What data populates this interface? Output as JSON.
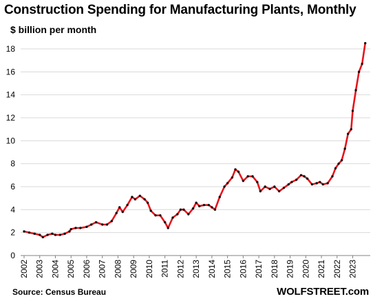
{
  "chart_data": {
    "type": "line",
    "title": "Construction Spending for Manufacturing Plants, Monthly",
    "subtitle": "$ billion per month",
    "xlabel": "",
    "ylabel": "",
    "xlim": [
      2002,
      2023.9
    ],
    "ylim": [
      0,
      19
    ],
    "yticks": [
      0,
      2,
      4,
      6,
      8,
      10,
      12,
      14,
      16,
      18
    ],
    "xticks": [
      "2002",
      "2003",
      "2004",
      "2005",
      "2006",
      "2007",
      "2008",
      "2009",
      "2010",
      "2011",
      "2012",
      "2013",
      "2014",
      "2015",
      "2016",
      "2017",
      "2018",
      "2019",
      "2020",
      "2021",
      "2022",
      "2023"
    ],
    "grid": {
      "y": true,
      "x": false
    },
    "line_color": "#e8141b",
    "marker_color": "#111111",
    "series": [
      {
        "x": [
          2002.0,
          2002.33,
          2002.67,
          2003.0,
          2003.2,
          2003.5,
          2003.8,
          2004.0,
          2004.3,
          2004.6,
          2004.9,
          2005.0,
          2005.3,
          2005.6,
          2006.0,
          2006.3,
          2006.6,
          2007.0,
          2007.3,
          2007.6,
          2007.9,
          2008.1,
          2008.3,
          2008.6,
          2008.9,
          2009.1,
          2009.4,
          2009.7,
          2009.9,
          2010.1,
          2010.4,
          2010.7,
          2011.0,
          2011.2,
          2011.5,
          2011.8,
          2012.0,
          2012.2,
          2012.5,
          2012.8,
          2013.0,
          2013.2,
          2013.5,
          2013.8,
          2014.0,
          2014.2,
          2014.5,
          2014.8,
          2015.0,
          2015.3,
          2015.5,
          2015.7,
          2016.0,
          2016.3,
          2016.6,
          2016.9,
          2017.1,
          2017.4,
          2017.7,
          2018.0,
          2018.3,
          2018.6,
          2018.9,
          2019.1,
          2019.4,
          2019.7,
          2019.9,
          2020.1,
          2020.4,
          2020.7,
          2020.9,
          2021.1,
          2021.4,
          2021.7,
          2021.9,
          2022.1,
          2022.3,
          2022.5,
          2022.7,
          2022.9,
          2023.0,
          2023.2,
          2023.4,
          2023.6,
          2023.8
        ],
        "values": [
          2.1,
          2.0,
          1.9,
          1.8,
          1.6,
          1.8,
          1.9,
          1.8,
          1.8,
          1.9,
          2.1,
          2.3,
          2.4,
          2.4,
          2.5,
          2.7,
          2.9,
          2.7,
          2.7,
          3.0,
          3.7,
          4.2,
          3.8,
          4.4,
          5.1,
          4.9,
          5.2,
          4.9,
          4.6,
          3.9,
          3.5,
          3.5,
          2.9,
          2.4,
          3.3,
          3.6,
          4.0,
          4.0,
          3.6,
          4.1,
          4.6,
          4.3,
          4.4,
          4.4,
          4.2,
          4.0,
          5.1,
          6.0,
          6.3,
          6.8,
          7.5,
          7.3,
          6.5,
          6.9,
          6.9,
          6.4,
          5.6,
          6.0,
          5.8,
          6.0,
          5.6,
          5.9,
          6.2,
          6.4,
          6.6,
          7.0,
          6.9,
          6.7,
          6.2,
          6.3,
          6.4,
          6.2,
          6.3,
          6.9,
          7.6,
          8.0,
          8.3,
          9.3,
          10.6,
          11.0,
          12.6,
          14.4,
          16.0,
          16.7,
          18.5
        ]
      }
    ]
  },
  "source_label": "Source: Census Bureau",
  "brand_label": "WOLFSTREET.com"
}
